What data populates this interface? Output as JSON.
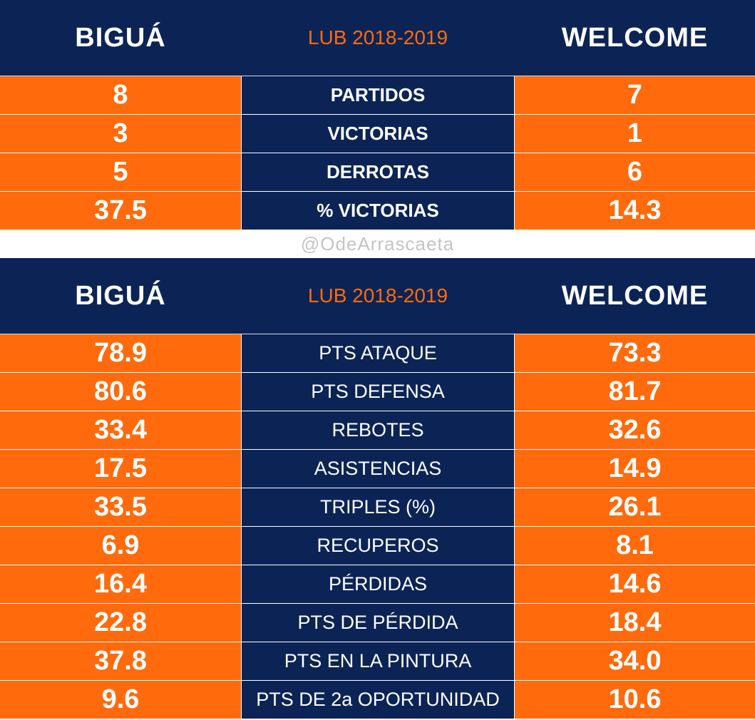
{
  "watermark": "@OdeArrascaeta",
  "colors": {
    "navy": "#0c2455",
    "orange": "#ff6a0c"
  },
  "table1": {
    "home_team": "BIGUÁ",
    "season": "LUB 2018-2019",
    "away_team": "WELCOME",
    "rows": [
      {
        "label": "PARTIDOS",
        "home": "8",
        "away": "7"
      },
      {
        "label": "VICTORIAS",
        "home": "3",
        "away": "1"
      },
      {
        "label": "DERROTAS",
        "home": "5",
        "away": "6"
      },
      {
        "label": "% VICTORIAS",
        "home": "37.5",
        "away": "14.3"
      }
    ]
  },
  "table2": {
    "home_team": "BIGUÁ",
    "season": "LUB 2018-2019",
    "away_team": "WELCOME",
    "rows": [
      {
        "label": "PTS ATAQUE",
        "home": "78.9",
        "away": "73.3"
      },
      {
        "label": "PTS DEFENSA",
        "home": "80.6",
        "away": "81.7"
      },
      {
        "label": "REBOTES",
        "home": "33.4",
        "away": "32.6"
      },
      {
        "label": "ASISTENCIAS",
        "home": "17.5",
        "away": "14.9"
      },
      {
        "label": "TRIPLES (%)",
        "home": "33.5",
        "away": "26.1"
      },
      {
        "label": "RECUPEROS",
        "home": "6.9",
        "away": "8.1"
      },
      {
        "label": "PÉRDIDAS",
        "home": "16.4",
        "away": "14.6"
      },
      {
        "label": "PTS DE PÉRDIDA",
        "home": "22.8",
        "away": "18.4"
      },
      {
        "label": "PTS EN LA PINTURA",
        "home": "37.8",
        "away": "34.0"
      },
      {
        "label": "PTS DE 2a OPORTUNIDAD",
        "home": "9.6",
        "away": "10.6"
      }
    ]
  }
}
